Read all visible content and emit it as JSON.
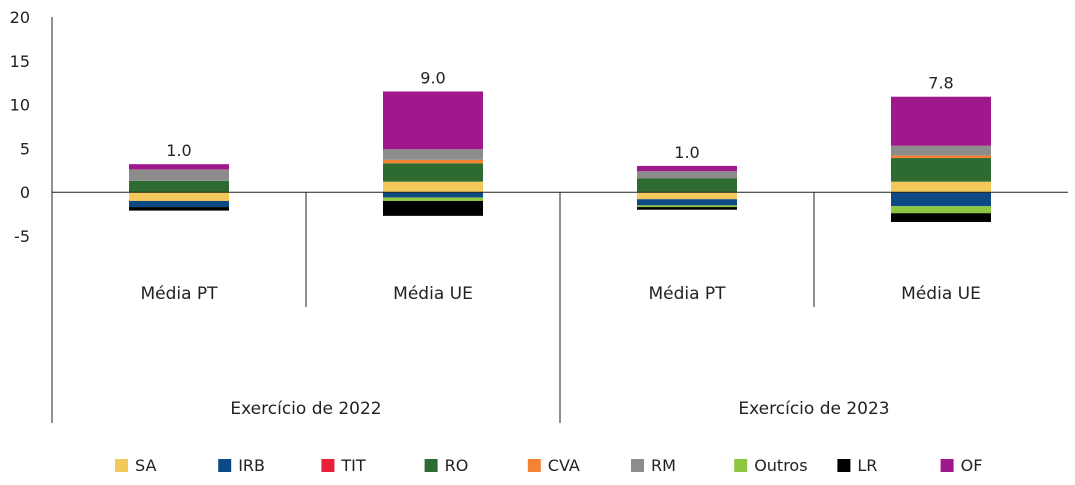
{
  "chart_data": {
    "type": "bar",
    "stacked": true,
    "title": "",
    "xlabel": "",
    "ylabel": "",
    "ylim": [
      -5,
      20
    ],
    "yticks": [
      20,
      15,
      10,
      5,
      0,
      -5
    ],
    "grid": false,
    "legend_position": "bottom",
    "groups": [
      "Exercício de 2022",
      "Exercício de 2023"
    ],
    "categories": [
      "Média PT",
      "Média UE",
      "Média PT",
      "Média UE"
    ],
    "category_group": [
      0,
      0,
      1,
      1
    ],
    "totals": [
      "1.0",
      "9.0",
      "1.0",
      "7.8"
    ],
    "series": [
      {
        "name": "SA",
        "color": "#F5C85A",
        "values": [
          -1.0,
          1.2,
          -0.8,
          1.2
        ]
      },
      {
        "name": "IRB",
        "color": "#0D4A85",
        "values": [
          -0.7,
          -0.6,
          -0.7,
          -1.6
        ]
      },
      {
        "name": "TIT",
        "color": "#E8203A",
        "values": [
          0.0,
          0.0,
          0.0,
          0.0
        ]
      },
      {
        "name": "RO",
        "color": "#2E6B30",
        "values": [
          1.3,
          2.1,
          1.6,
          2.7
        ]
      },
      {
        "name": "CVA",
        "color": "#F58232",
        "values": [
          0.0,
          0.4,
          0.0,
          0.3
        ]
      },
      {
        "name": "RM",
        "color": "#8C8C8C",
        "values": [
          1.3,
          1.2,
          0.8,
          1.1
        ]
      },
      {
        "name": "Outros",
        "color": "#8DC63F",
        "values": [
          0.0,
          -0.4,
          -0.2,
          -0.8
        ]
      },
      {
        "name": "LR",
        "color": "#000000",
        "values": [
          -0.4,
          -1.7,
          -0.3,
          -1.0
        ]
      },
      {
        "name": "OF",
        "color": "#A0198C",
        "values": [
          0.6,
          6.6,
          0.6,
          5.6
        ]
      }
    ]
  }
}
